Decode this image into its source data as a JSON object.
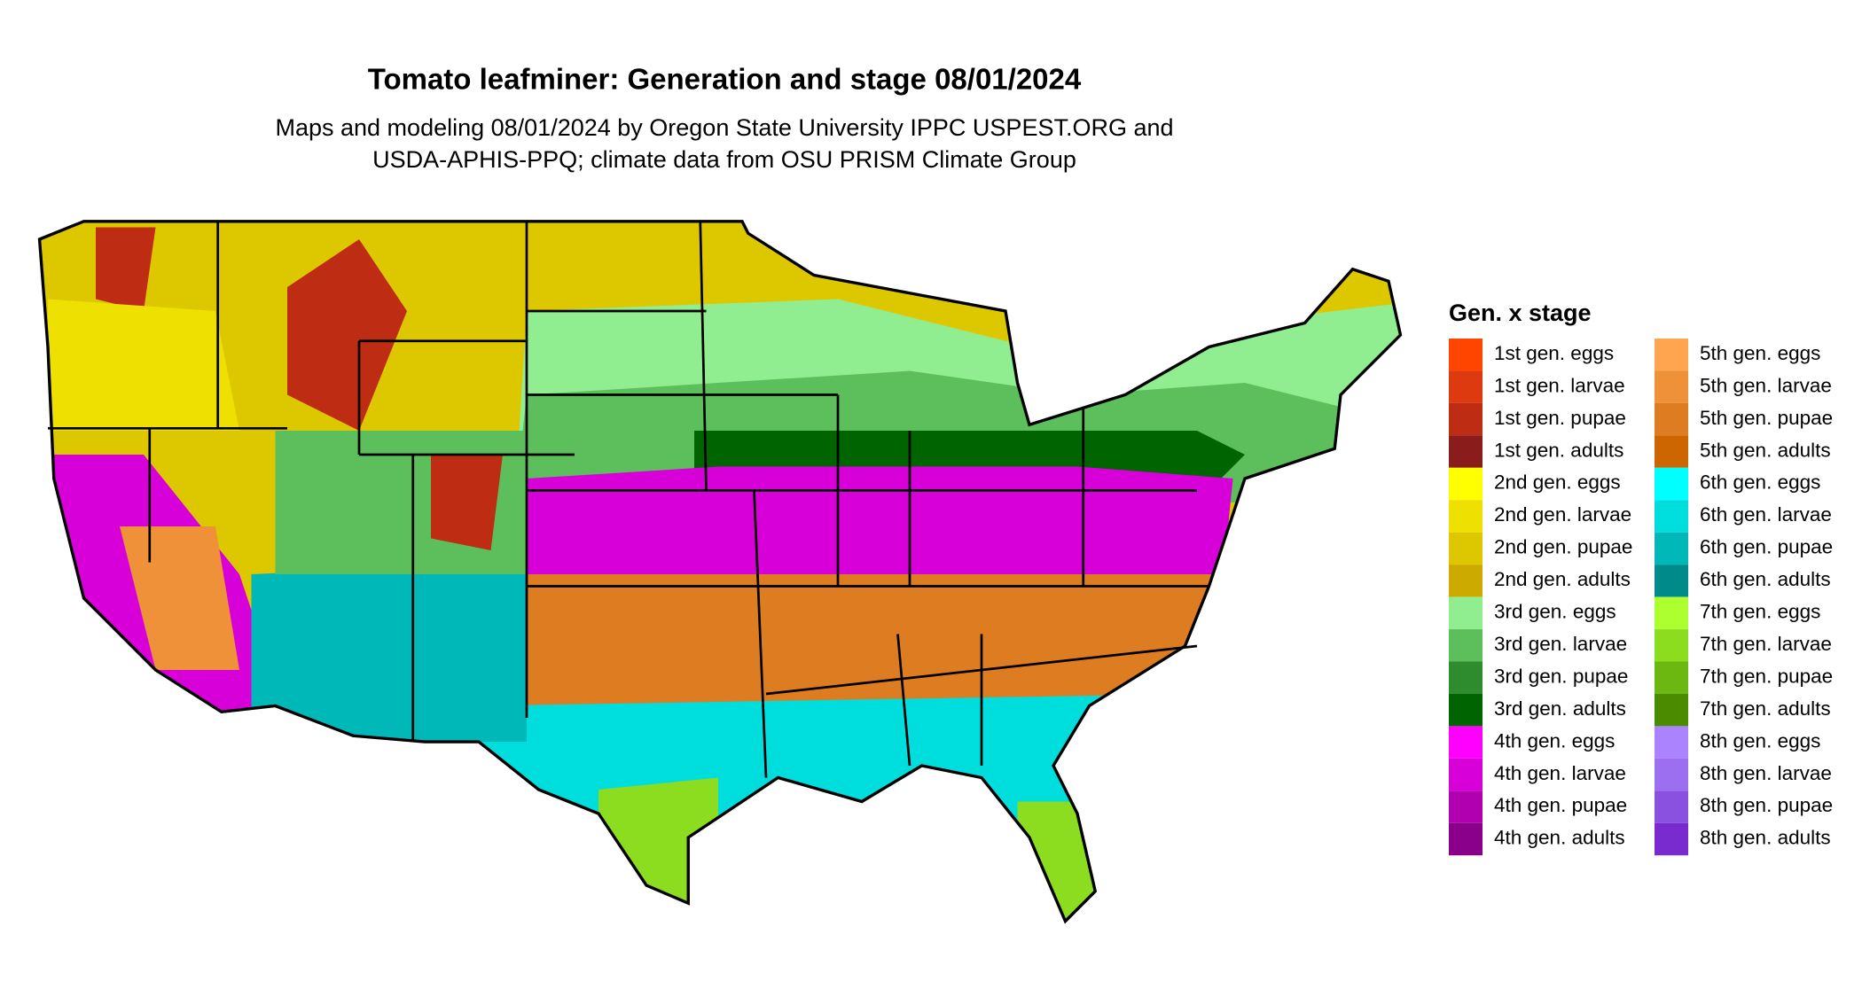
{
  "header": {
    "title": "Tomato leafminer: Generation and stage 08/01/2024",
    "subtitle": [
      "Maps and modeling 08/01/2024 by Oregon State University IPPC USPEST.ORG and",
      "USDA-APHIS-PPQ; climate data from OSU PRISM Climate Group"
    ]
  },
  "legend": {
    "title": "Gen. x stage",
    "items": [
      {
        "label": "1st gen. eggs",
        "color": "#ff4500"
      },
      {
        "label": "1st gen. larvae",
        "color": "#de3a10"
      },
      {
        "label": "1st gen. pupae",
        "color": "#bf2c14"
      },
      {
        "label": "1st gen. adults",
        "color": "#8b1c1c"
      },
      {
        "label": "2nd gen. eggs",
        "color": "#ffff00"
      },
      {
        "label": "2nd gen. larvae",
        "color": "#eee000"
      },
      {
        "label": "2nd gen. pupae",
        "color": "#ddc800"
      },
      {
        "label": "2nd gen. adults",
        "color": "#ccaa00"
      },
      {
        "label": "3rd gen. eggs",
        "color": "#90ee90"
      },
      {
        "label": "3rd gen. larvae",
        "color": "#5cbf5c"
      },
      {
        "label": "3rd gen. pupae",
        "color": "#2e8b2e"
      },
      {
        "label": "3rd gen. adults",
        "color": "#006400"
      },
      {
        "label": "4th gen. eggs",
        "color": "#ff00ff"
      },
      {
        "label": "4th gen. larvae",
        "color": "#d800d8"
      },
      {
        "label": "4th gen. pupae",
        "color": "#b000b0"
      },
      {
        "label": "4th gen. adults",
        "color": "#8b008b"
      },
      {
        "label": "5th gen. eggs",
        "color": "#ffa54f"
      },
      {
        "label": "5th gen. larvae",
        "color": "#ee9138"
      },
      {
        "label": "5th gen. pupae",
        "color": "#dd7c20"
      },
      {
        "label": "5th gen. adults",
        "color": "#cd6600"
      },
      {
        "label": "6th gen. eggs",
        "color": "#00ffff"
      },
      {
        "label": "6th gen. larvae",
        "color": "#00dddd"
      },
      {
        "label": "6th gen. pupae",
        "color": "#00b8b8"
      },
      {
        "label": "6th gen. adults",
        "color": "#008b8b"
      },
      {
        "label": "7th gen. eggs",
        "color": "#adff2f"
      },
      {
        "label": "7th gen. larvae",
        "color": "#8cdc20"
      },
      {
        "label": "7th gen. pupae",
        "color": "#6cb810"
      },
      {
        "label": "7th gen. adults",
        "color": "#4a8b00"
      },
      {
        "label": "8th gen. eggs",
        "color": "#ab82ff"
      },
      {
        "label": "8th gen. larvae",
        "color": "#9c6ef0"
      },
      {
        "label": "8th gen. pupae",
        "color": "#8a50e0"
      },
      {
        "label": "8th gen. adults",
        "color": "#7a2bd0"
      }
    ]
  }
}
